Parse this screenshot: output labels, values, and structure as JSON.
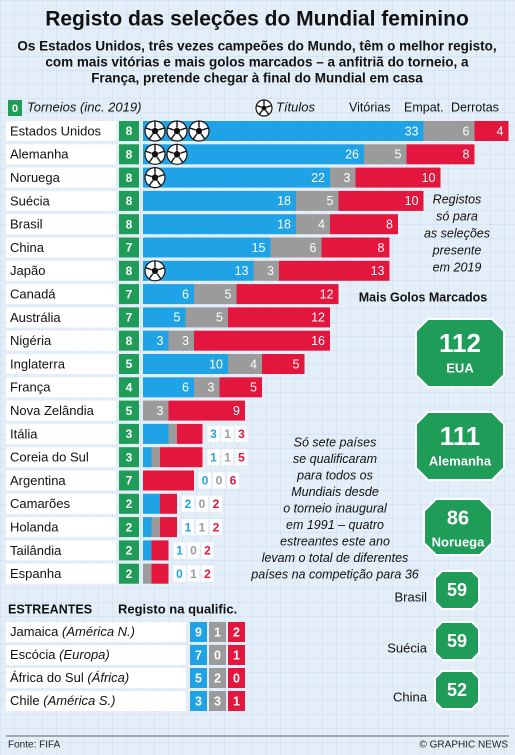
{
  "chart_data": {
    "type": "stacked-bar-h",
    "title": "Registo das seleções do Mundial feminino",
    "subtitle": [
      "Os Estados Unidos, três vezes campeões do Mundo, têm o melhor registo,",
      "com mais vitórias e mais golos marcados – a anfitriã do torneio, a",
      "França, pretende chegar à final do Mundial em casa"
    ],
    "legend": {
      "tournaments_sample": "0",
      "tournaments": "Torneios (inc. 2019)",
      "titles": "Títulos"
    },
    "categories": [
      "Estados Unidos",
      "Alemanha",
      "Noruega",
      "Suécia",
      "Brasil",
      "China",
      "Japão",
      "Canadá",
      "Austrália",
      "Nigéria",
      "Inglaterra",
      "França",
      "Nova Zelândia",
      "Itália",
      "Coreia do Sul",
      "Argentina",
      "Camarões",
      "Holanda",
      "Tailândia",
      "Espanha"
    ],
    "tournaments": [
      8,
      8,
      8,
      8,
      8,
      7,
      8,
      7,
      7,
      8,
      5,
      4,
      5,
      3,
      3,
      7,
      2,
      2,
      2,
      2
    ],
    "titles": [
      3,
      2,
      1,
      0,
      0,
      0,
      1,
      0,
      0,
      0,
      0,
      0,
      0,
      0,
      0,
      0,
      0,
      0,
      0,
      0
    ],
    "series": [
      {
        "name": "Vitórias",
        "color": "#1fa3e6",
        "values": [
          33,
          26,
          22,
          18,
          18,
          15,
          13,
          6,
          5,
          3,
          10,
          6,
          0,
          3,
          1,
          0,
          2,
          1,
          1,
          0
        ]
      },
      {
        "name": "Empat.",
        "color": "#9b9b9b",
        "values": [
          6,
          5,
          3,
          5,
          4,
          6,
          3,
          5,
          5,
          3,
          4,
          3,
          3,
          1,
          1,
          0,
          0,
          1,
          0,
          1
        ]
      },
      {
        "name": "Derrotas",
        "color": "#e3163d",
        "values": [
          4,
          8,
          10,
          10,
          8,
          8,
          13,
          12,
          12,
          16,
          5,
          5,
          9,
          3,
          5,
          6,
          2,
          2,
          2,
          2
        ]
      }
    ],
    "note_registos": [
      "Registos",
      "só para",
      "as seleções",
      "presente",
      "em 2019"
    ],
    "note_paises": [
      "Só sete países",
      "se qualificaram",
      "para todos os",
      "Mundiais desde",
      "o torneio inaugural",
      "em 1991 – quatro",
      "estreantes este ano",
      "levam o total de diferentes",
      "países na competição para 36"
    ],
    "top_scorers": {
      "title": "Mais Golos Marcados",
      "teams": [
        "EUA",
        "Alemanha",
        "Noruega",
        "Brasil",
        "Suécia",
        "China"
      ],
      "goals": [
        112,
        111,
        86,
        59,
        59,
        52
      ],
      "color": "#1f9c58"
    },
    "debutants": {
      "title": "Estreantes",
      "subtitle": "Registo na qualific.",
      "teams": [
        "Jamaica",
        "Escócia",
        "África do Sul",
        "Chile"
      ],
      "regions": [
        "(América N.)",
        "(Europa)",
        "(África)",
        "(América S.)"
      ],
      "wins": [
        9,
        7,
        5,
        3
      ],
      "draws": [
        1,
        0,
        2,
        3
      ],
      "losses": [
        2,
        1,
        0,
        1
      ]
    },
    "source": "Fonte: FIFA",
    "credit": "© GRAPHIC NEWS"
  }
}
